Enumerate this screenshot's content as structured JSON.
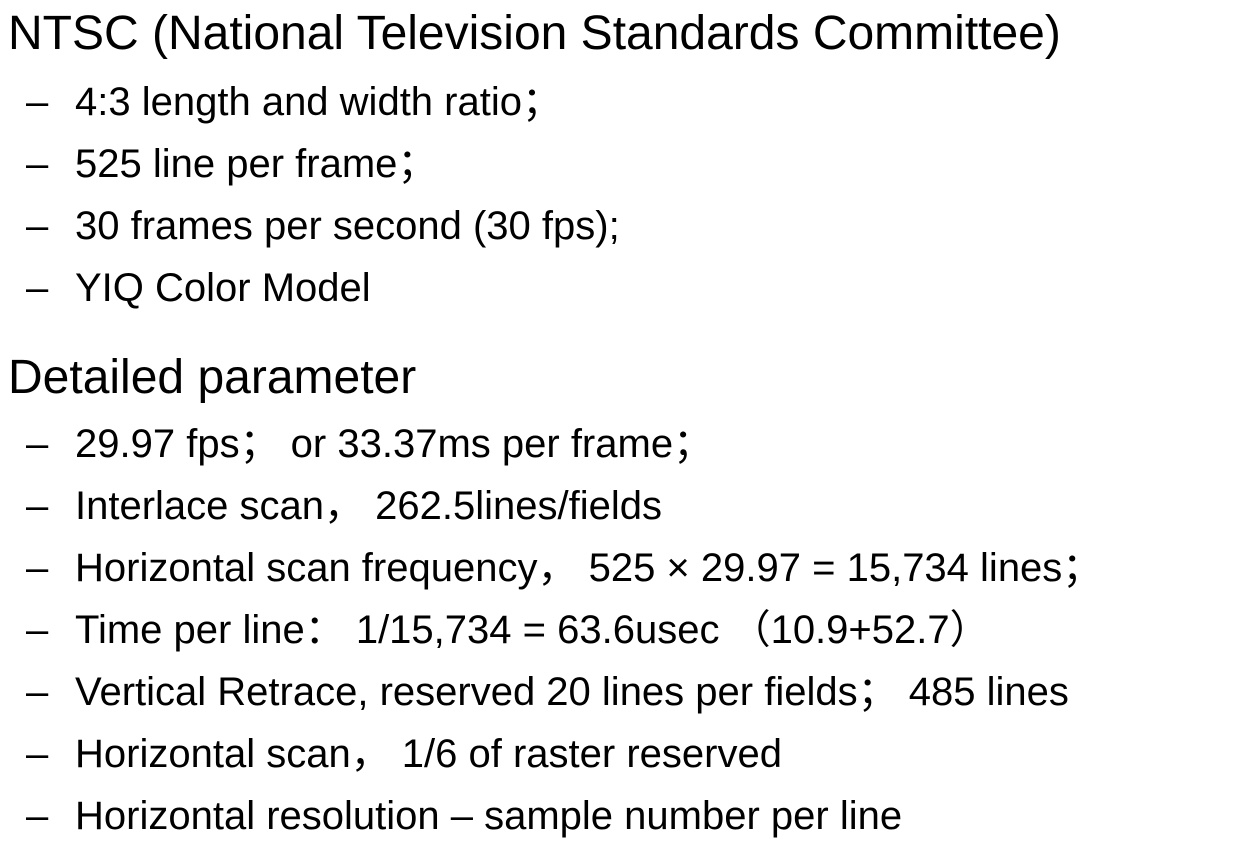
{
  "sections": [
    {
      "heading": "NTSC (National Television Standards Committee)",
      "bullet": "–",
      "items": [
        "4:3 length and width ratio；",
        "525 line per frame；",
        "30 frames per second (30 fps);",
        "YIQ Color Model"
      ]
    },
    {
      "heading": "Detailed parameter",
      "bullet": "–",
      "items": [
        "29.97 fps； or  33.37ms per frame；",
        "Interlace scan， 262.5lines/fields",
        "Horizontal scan frequency， 525 × 29.97 = 15,734 lines；",
        "Time per line： 1/15,734 = 63.6usec （10.9+52.7）",
        "Vertical Retrace,  reserved 20 lines per fields； 485 lines",
        "Horizontal scan，   1/6  of raster reserved",
        "Horizontal resolution – sample number per line"
      ]
    }
  ]
}
